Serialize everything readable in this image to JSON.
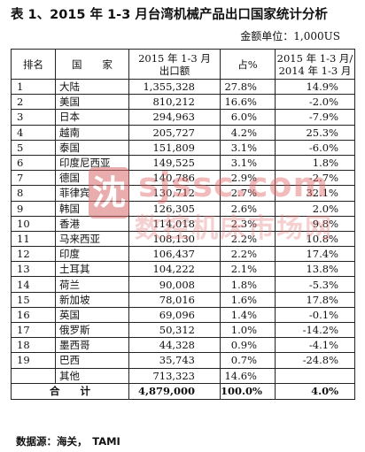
{
  "title": "表 1、2015 年 1-3 月台湾机械产品出口国家统计分析",
  "unit_note": "金额单位：1,000US",
  "headers": {
    "rank": "排名",
    "country": "国　　家",
    "amount": "2015 年 1-3 月\n出口额",
    "share": "占%",
    "yoy": "2015 年 1-3 月/\n2014 年 1-3 月"
  },
  "rows": [
    {
      "rank": "1",
      "country": "大陆",
      "amount": "1,355,328",
      "share": "27.8%",
      "yoy": "14.9%"
    },
    {
      "rank": "2",
      "country": "美国",
      "amount": "810,212",
      "share": "16.6%",
      "yoy": "-2.0%"
    },
    {
      "rank": "3",
      "country": "日本",
      "amount": "294,963",
      "share": "6.0%",
      "yoy": "-7.9%"
    },
    {
      "rank": "4",
      "country": "越南",
      "amount": "205,727",
      "share": "4.2%",
      "yoy": "25.3%"
    },
    {
      "rank": "5",
      "country": "泰国",
      "amount": "151,809",
      "share": "3.1%",
      "yoy": "-6.0%"
    },
    {
      "rank": "6",
      "country": "印度尼西亚",
      "amount": "149,525",
      "share": "3.1%",
      "yoy": "1.8%"
    },
    {
      "rank": "7",
      "country": "德国",
      "amount": "140,786",
      "share": "2.9%",
      "yoy": "-2.7%"
    },
    {
      "rank": "8",
      "country": "菲律宾",
      "amount": "130,712",
      "share": "2.7%",
      "yoy": "32.1%"
    },
    {
      "rank": "9",
      "country": "韩国",
      "amount": "126,305",
      "share": "2.6%",
      "yoy": "2.0%"
    },
    {
      "rank": "10",
      "country": "香港",
      "amount": "114,018",
      "share": "2.3%",
      "yoy": "9.8%"
    },
    {
      "rank": "11",
      "country": "马来西亚",
      "amount": "108,130",
      "share": "2.2%",
      "yoy": "10.8%"
    },
    {
      "rank": "12",
      "country": "印度",
      "amount": "106,437",
      "share": "2.2%",
      "yoy": "17.4%"
    },
    {
      "rank": "13",
      "country": "土耳其",
      "amount": "104,222",
      "share": "2.1%",
      "yoy": "13.8%"
    },
    {
      "rank": "14",
      "country": "荷兰",
      "amount": "90,008",
      "share": "1.8%",
      "yoy": "-5.3%"
    },
    {
      "rank": "15",
      "country": "新加坡",
      "amount": "78,016",
      "share": "1.6%",
      "yoy": "17.8%"
    },
    {
      "rank": "16",
      "country": "英国",
      "amount": "69,096",
      "share": "1.4%",
      "yoy": "-0.1%"
    },
    {
      "rank": "17",
      "country": "俄罗斯",
      "amount": "50,312",
      "share": "1.0%",
      "yoy": "-14.2%"
    },
    {
      "rank": "18",
      "country": "墨西哥",
      "amount": "44,328",
      "share": "0.9%",
      "yoy": "-4.1%"
    },
    {
      "rank": "19",
      "country": "巴西",
      "amount": "35,743",
      "share": "0.7%",
      "yoy": "-24.8%"
    },
    {
      "rank": "",
      "country": "其他",
      "amount": "713,323",
      "share": "14.6%",
      "yoy": ""
    }
  ],
  "total": {
    "label": "合　　计",
    "amount": "4,879,000",
    "share": "100.0%",
    "yoy": "4.0%"
  },
  "source": "数据源：海关，　TAMI",
  "watermark": {
    "logo_char": "沈",
    "url": "sjssc.com",
    "cn": "数控机床市场网"
  },
  "colors": {
    "watermark": "#e26a6a"
  }
}
